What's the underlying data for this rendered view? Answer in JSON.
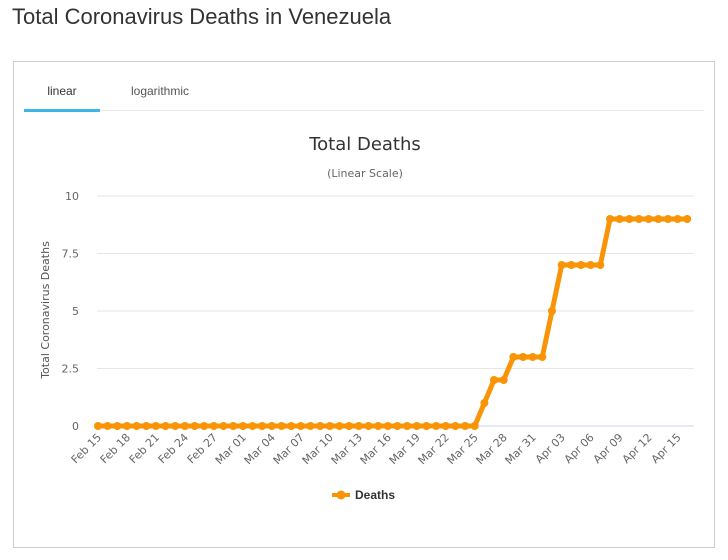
{
  "page": {
    "title": "Total Coronavirus Deaths in Venezuela"
  },
  "tabs": [
    {
      "label": "linear",
      "active": true
    },
    {
      "label": "logarithmic",
      "active": false
    }
  ],
  "colors": {
    "series": "#f89406",
    "tab_underline": "#3fb5e6",
    "grid": "#e6e6e6",
    "text": "#666666"
  },
  "chart_data": {
    "type": "line",
    "title": "Total Deaths",
    "subtitle": "(Linear Scale)",
    "ylabel": "Total Coronavirus Deaths",
    "xlabel": "",
    "ylim": [
      0,
      10
    ],
    "yticks": [
      0,
      2.5,
      5,
      7.5,
      10
    ],
    "ytick_labels": [
      "0",
      "2.5",
      "5",
      "7.5",
      "10"
    ],
    "grid": true,
    "legend": "bottom-center",
    "x": [
      "Feb 15",
      "Feb 16",
      "Feb 17",
      "Feb 18",
      "Feb 19",
      "Feb 20",
      "Feb 21",
      "Feb 22",
      "Feb 23",
      "Feb 24",
      "Feb 25",
      "Feb 26",
      "Feb 27",
      "Feb 28",
      "Feb 29",
      "Mar 01",
      "Mar 02",
      "Mar 03",
      "Mar 04",
      "Mar 05",
      "Mar 06",
      "Mar 07",
      "Mar 08",
      "Mar 09",
      "Mar 10",
      "Mar 11",
      "Mar 12",
      "Mar 13",
      "Mar 14",
      "Mar 15",
      "Mar 16",
      "Mar 17",
      "Mar 18",
      "Mar 19",
      "Mar 20",
      "Mar 21",
      "Mar 22",
      "Mar 23",
      "Mar 24",
      "Mar 25",
      "Mar 26",
      "Mar 27",
      "Mar 28",
      "Mar 29",
      "Mar 30",
      "Mar 31",
      "Apr 01",
      "Apr 02",
      "Apr 03",
      "Apr 04",
      "Apr 05",
      "Apr 06",
      "Apr 07",
      "Apr 08",
      "Apr 09",
      "Apr 10",
      "Apr 11",
      "Apr 12",
      "Apr 13",
      "Apr 14",
      "Apr 15",
      "Apr 16"
    ],
    "xtick_labels": [
      "Feb 15",
      "Feb 18",
      "Feb 21",
      "Feb 24",
      "Feb 27",
      "Mar 01",
      "Mar 04",
      "Mar 07",
      "Mar 10",
      "Mar 13",
      "Mar 16",
      "Mar 19",
      "Mar 22",
      "Mar 25",
      "Mar 28",
      "Mar 31",
      "Apr 03",
      "Apr 06",
      "Apr 09",
      "Apr 12",
      "Apr 15"
    ],
    "series": [
      {
        "name": "Deaths",
        "values": [
          0,
          0,
          0,
          0,
          0,
          0,
          0,
          0,
          0,
          0,
          0,
          0,
          0,
          0,
          0,
          0,
          0,
          0,
          0,
          0,
          0,
          0,
          0,
          0,
          0,
          0,
          0,
          0,
          0,
          0,
          0,
          0,
          0,
          0,
          0,
          0,
          0,
          0,
          0,
          0,
          1,
          2,
          2,
          3,
          3,
          3,
          3,
          5,
          7,
          7,
          7,
          7,
          7,
          9,
          9,
          9,
          9,
          9,
          9,
          9,
          9,
          9
        ]
      }
    ]
  }
}
